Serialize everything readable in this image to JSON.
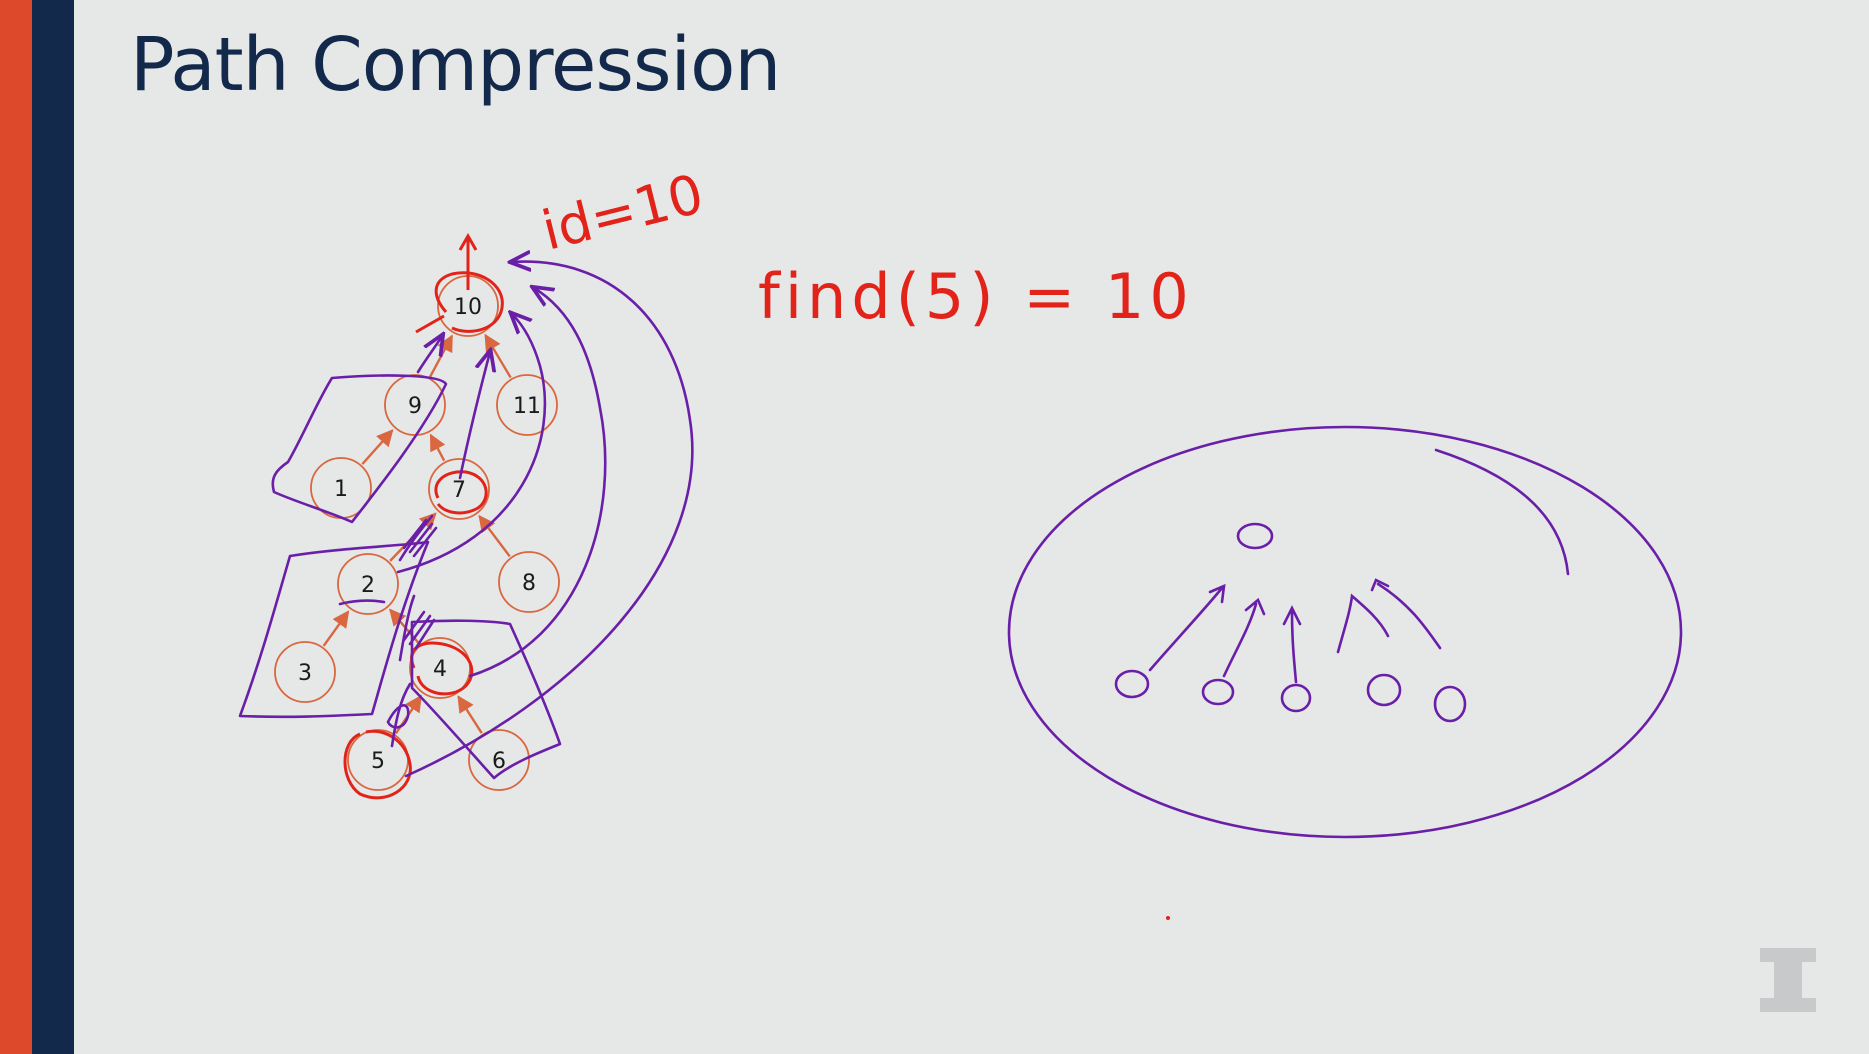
{
  "slide": {
    "title": "Path Compression",
    "colors": {
      "orange_stripe": "#dd4a2b",
      "navy_stripe": "#13294b",
      "node_stroke": "#d9673f",
      "ink_red": "#e2231a",
      "ink_purple": "#6a1fa8"
    }
  },
  "tree": {
    "nodes": [
      {
        "id": "10",
        "label": "10"
      },
      {
        "id": "9",
        "label": "9"
      },
      {
        "id": "11",
        "label": "11"
      },
      {
        "id": "1",
        "label": "1"
      },
      {
        "id": "7",
        "label": "7"
      },
      {
        "id": "2",
        "label": "2"
      },
      {
        "id": "8",
        "label": "8"
      },
      {
        "id": "3",
        "label": "3"
      },
      {
        "id": "4",
        "label": "4"
      },
      {
        "id": "5",
        "label": "5"
      },
      {
        "id": "6",
        "label": "6"
      }
    ],
    "edges": [
      {
        "from": "9",
        "to": "10"
      },
      {
        "from": "11",
        "to": "10"
      },
      {
        "from": "1",
        "to": "9"
      },
      {
        "from": "7",
        "to": "9"
      },
      {
        "from": "8",
        "to": "7"
      },
      {
        "from": "2",
        "to": "7"
      },
      {
        "from": "3",
        "to": "2"
      },
      {
        "from": "4",
        "to": "2"
      },
      {
        "from": "6",
        "to": "4"
      },
      {
        "from": "5",
        "to": "4"
      }
    ]
  },
  "annotations": {
    "id_note": "id=10",
    "find_note": "find(5) = 10"
  },
  "logo": {
    "icon": "illinois-block-i-icon"
  }
}
